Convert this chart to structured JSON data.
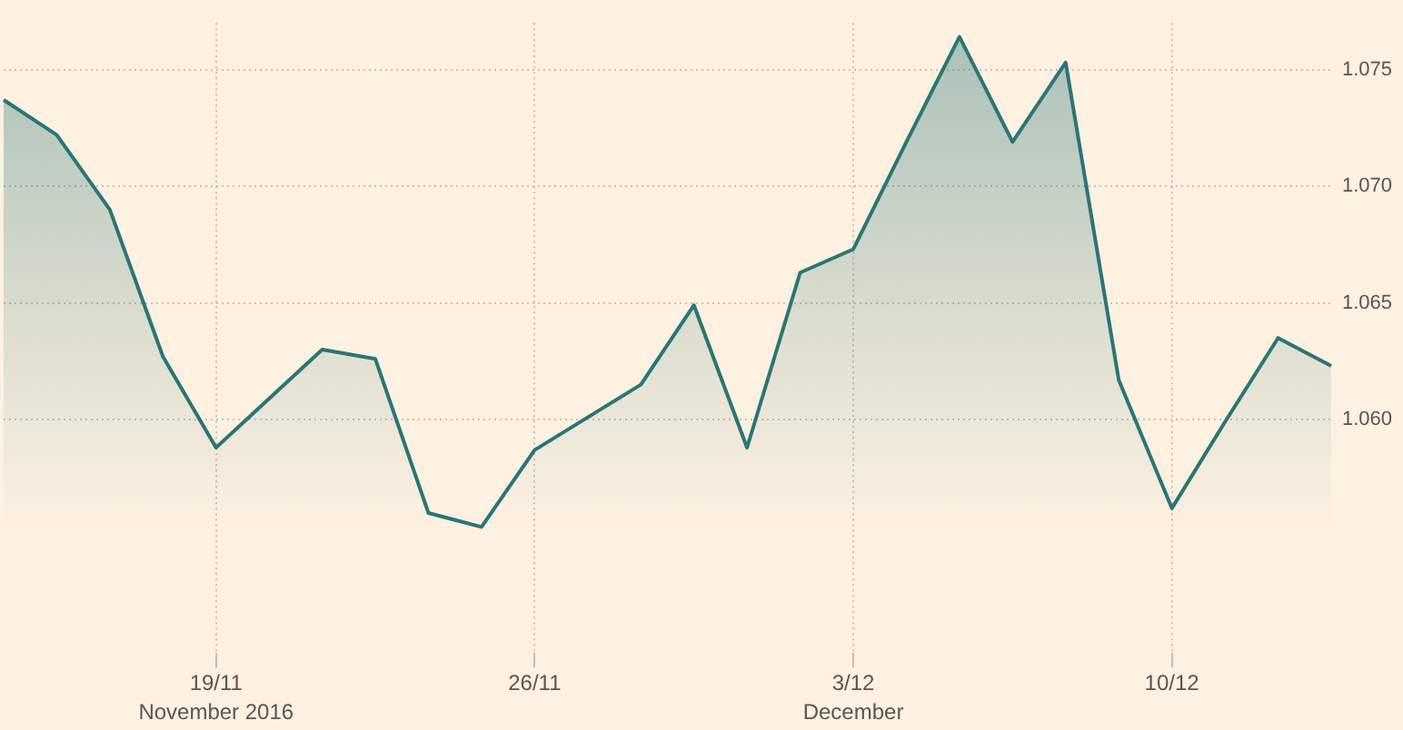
{
  "chart_data": {
    "type": "area",
    "categories": [
      null,
      null,
      null,
      null,
      "19/11",
      null,
      null,
      null,
      null,
      null,
      "26/11",
      null,
      null,
      null,
      null,
      null,
      "3/12",
      null,
      null,
      null,
      null,
      null,
      "10/12",
      null,
      null,
      null
    ],
    "series": [
      {
        "color": "#2b7576",
        "values": [
          1.0737,
          1.0722,
          1.069,
          1.0627,
          1.0588,
          1.0609,
          1.063,
          1.0626,
          1.056,
          1.0554,
          1.0587,
          1.0601,
          1.0615,
          1.0649,
          1.0588,
          1.0663,
          1.0673,
          1.0719,
          1.0764,
          1.0719,
          1.0753,
          1.0617,
          1.0562,
          1.0599,
          1.0635,
          1.0623
        ]
      }
    ],
    "ylim": [
      1.05,
      1.077
    ],
    "yticks": [
      {
        "value": 1.06,
        "label": "1.060"
      },
      1.065,
      {
        "value": 1.07,
        "label": "1.070"
      },
      1.075
    ],
    "grid": true,
    "annotations": [
      "November 2016",
      "December"
    ]
  }
}
